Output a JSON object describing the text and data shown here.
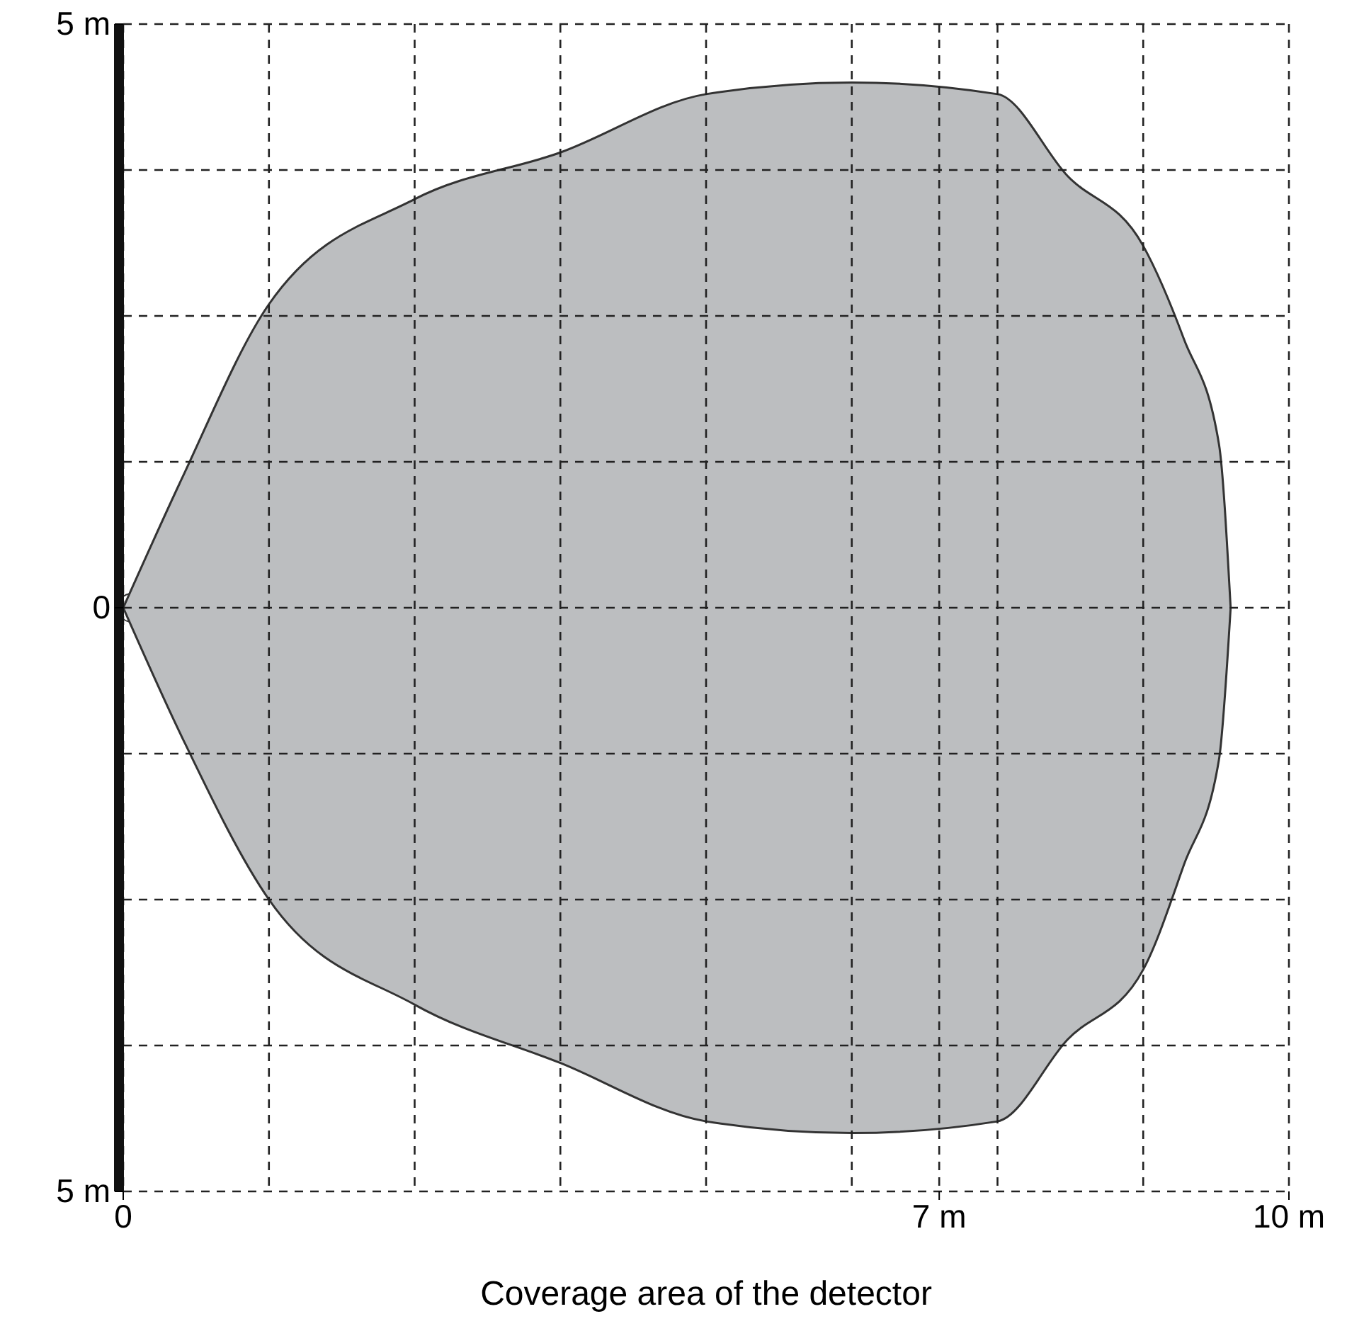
{
  "chart_data": {
    "type": "area",
    "xlabel": "Coverage area of the detector",
    "xlim": [
      0,
      10
    ],
    "ylim": [
      -5,
      5
    ],
    "xticks": [
      {
        "value": 0,
        "label": "0"
      },
      {
        "value": 1.25,
        "label": null
      },
      {
        "value": 2.5,
        "label": null
      },
      {
        "value": 3.75,
        "label": null
      },
      {
        "value": 5,
        "label": null
      },
      {
        "value": 6.25,
        "label": null
      },
      {
        "value": 7,
        "label": "7 m"
      },
      {
        "value": 7.5,
        "label": null
      },
      {
        "value": 8.75,
        "label": null
      },
      {
        "value": 10,
        "label": "10 m"
      }
    ],
    "yticks": [
      {
        "value": 5,
        "label": "5 m"
      },
      {
        "value": 3.75,
        "label": null
      },
      {
        "value": 2.5,
        "label": null
      },
      {
        "value": 1.25,
        "label": null
      },
      {
        "value": 0,
        "label": "0"
      },
      {
        "value": -1.25,
        "label": null
      },
      {
        "value": -2.5,
        "label": null
      },
      {
        "value": -3.75,
        "label": null
      },
      {
        "value": -5,
        "label": "5 m"
      }
    ],
    "grid": true,
    "line_style": "dashed",
    "series": [
      {
        "color": "#bcbec0",
        "x": [
          0,
          0.5,
          1.25,
          2.5,
          3.75,
          5,
          6.25,
          7.5,
          8.1,
          8.75,
          9.1,
          9.4,
          9.5
        ],
        "values": [
          0,
          1.1,
          2.6,
          3.5,
          3.9,
          4.4,
          4.5,
          4.4,
          3.7,
          3.1,
          2.3,
          1.4,
          0
        ]
      },
      {
        "color": "#bcbec0",
        "x": [
          0,
          0.5,
          1.25,
          2.5,
          3.75,
          5,
          6.25,
          7.5,
          8.1,
          8.75,
          9.1,
          9.4,
          9.5
        ],
        "values": [
          0,
          -1.1,
          -2.5,
          -3.4,
          -3.9,
          -4.4,
          -4.5,
          -4.4,
          -3.7,
          -3.1,
          -2.2,
          -1.3,
          0
        ]
      }
    ]
  }
}
